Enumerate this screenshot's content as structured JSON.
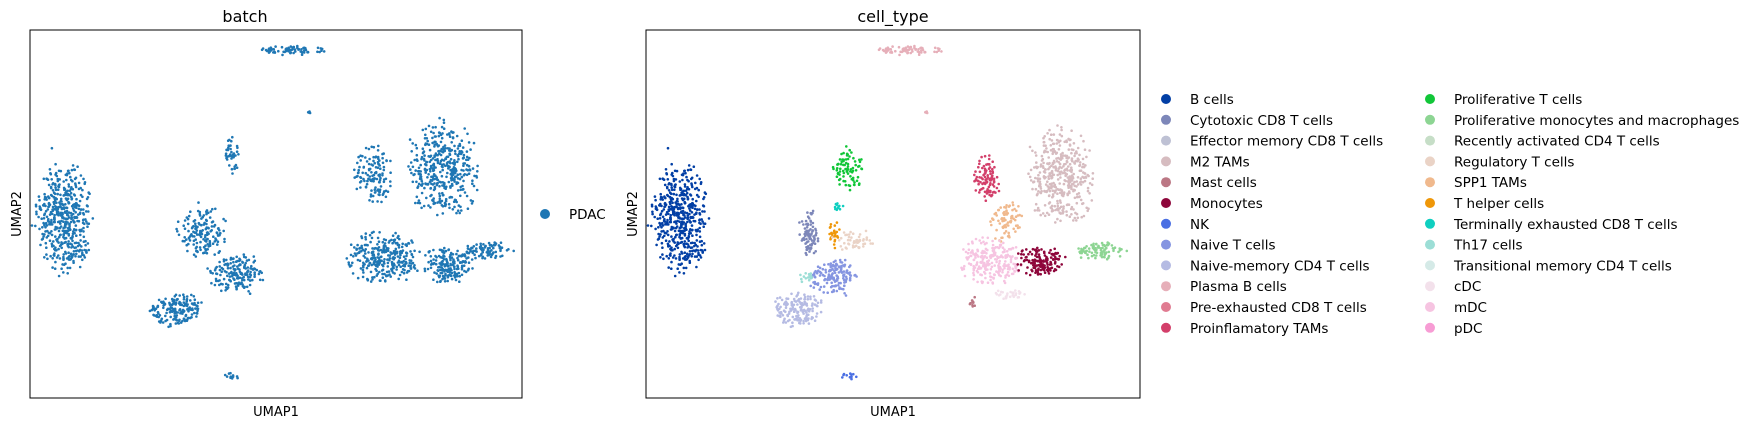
{
  "figure": {
    "panels": [
      {
        "title": "batch",
        "xlabel": "UMAP1",
        "ylabel": "UMAP2"
      },
      {
        "title": "cell_type",
        "xlabel": "UMAP1",
        "ylabel": "UMAP2"
      }
    ]
  },
  "chart_data": [
    {
      "type": "scatter",
      "title": "batch",
      "xlabel": "UMAP1",
      "ylabel": "UMAP2",
      "grid": false,
      "ticks": "none",
      "legend": {
        "placement": "right",
        "entries": [
          {
            "name": "PDAC",
            "color": "#1f77b4"
          }
        ]
      },
      "clusters": [
        {
          "name": "PDAC",
          "cx": 0.07,
          "cy": 0.51,
          "rx": 0.055,
          "ry": 0.15,
          "n": 500
        },
        {
          "name": "PDAC",
          "cx": 0.53,
          "cy": 0.055,
          "rx": 0.065,
          "ry": 0.012,
          "n": 70
        },
        {
          "name": "PDAC",
          "cx": 0.565,
          "cy": 0.225,
          "rx": 0.006,
          "ry": 0.006,
          "n": 6
        },
        {
          "name": "PDAC",
          "cx": 0.41,
          "cy": 0.34,
          "rx": 0.015,
          "ry": 0.05,
          "n": 40
        },
        {
          "name": "PDAC",
          "cx": 0.35,
          "cy": 0.55,
          "rx": 0.05,
          "ry": 0.07,
          "n": 150
        },
        {
          "name": "PDAC",
          "cx": 0.42,
          "cy": 0.66,
          "rx": 0.055,
          "ry": 0.055,
          "n": 170
        },
        {
          "name": "PDAC",
          "cx": 0.3,
          "cy": 0.76,
          "rx": 0.06,
          "ry": 0.045,
          "n": 170
        },
        {
          "name": "PDAC",
          "cx": 0.7,
          "cy": 0.4,
          "rx": 0.04,
          "ry": 0.08,
          "n": 130
        },
        {
          "name": "PDAC",
          "cx": 0.84,
          "cy": 0.38,
          "rx": 0.07,
          "ry": 0.13,
          "n": 420
        },
        {
          "name": "PDAC",
          "cx": 0.72,
          "cy": 0.62,
          "rx": 0.07,
          "ry": 0.07,
          "n": 300
        },
        {
          "name": "PDAC",
          "cx": 0.85,
          "cy": 0.64,
          "rx": 0.05,
          "ry": 0.05,
          "n": 180
        },
        {
          "name": "PDAC",
          "cx": 0.93,
          "cy": 0.6,
          "rx": 0.05,
          "ry": 0.025,
          "n": 90
        },
        {
          "name": "PDAC",
          "cx": 0.41,
          "cy": 0.94,
          "rx": 0.015,
          "ry": 0.01,
          "n": 12
        }
      ]
    },
    {
      "type": "scatter",
      "title": "cell_type",
      "xlabel": "UMAP1",
      "ylabel": "UMAP2",
      "grid": false,
      "ticks": "none",
      "legend": {
        "placement": "right",
        "columns": 2,
        "entries": [
          {
            "name": "B cells",
            "color": "#023fa5"
          },
          {
            "name": "Cytotoxic CD8 T cells",
            "color": "#7d87b9"
          },
          {
            "name": "Effector memory CD8 T cells",
            "color": "#bec1d4"
          },
          {
            "name": "M2 TAMs",
            "color": "#d6bcc0"
          },
          {
            "name": "Mast cells",
            "color": "#bb7784"
          },
          {
            "name": "Monocytes",
            "color": "#8e063b"
          },
          {
            "name": "NK",
            "color": "#4a6fe3"
          },
          {
            "name": "Naive T cells",
            "color": "#8595e1"
          },
          {
            "name": "Naive-memory CD4 T cells",
            "color": "#b5bbe3"
          },
          {
            "name": "Plasma B cells",
            "color": "#e6afb9"
          },
          {
            "name": "Pre-exhausted CD8 T cells",
            "color": "#e07b91"
          },
          {
            "name": "Proinflamatory TAMs",
            "color": "#d33f6a"
          },
          {
            "name": "Proliferative T cells",
            "color": "#11c638"
          },
          {
            "name": "Proliferative monocytes and macrophages",
            "color": "#8dd593"
          },
          {
            "name": "Recently activated CD4 T cells",
            "color": "#c6dec7"
          },
          {
            "name": "Regulatory T cells",
            "color": "#ead3c6"
          },
          {
            "name": "SPP1 TAMs",
            "color": "#f0b98d"
          },
          {
            "name": "T helper cells",
            "color": "#ef9708"
          },
          {
            "name": "Terminally exhausted CD8 T cells",
            "color": "#0fcfc0"
          },
          {
            "name": "Th17 cells",
            "color": "#9cded6"
          },
          {
            "name": "Transitional memory CD4 T cells",
            "color": "#d5eae7"
          },
          {
            "name": "cDC",
            "color": "#f3e1eb"
          },
          {
            "name": "mDC",
            "color": "#f6c4e1"
          },
          {
            "name": "pDC",
            "color": "#f79cd4"
          }
        ]
      },
      "clusters": [
        {
          "name": "B cells",
          "cx": 0.07,
          "cy": 0.51,
          "rx": 0.055,
          "ry": 0.15,
          "n": 500
        },
        {
          "name": "Plasma B cells",
          "cx": 0.53,
          "cy": 0.055,
          "rx": 0.065,
          "ry": 0.012,
          "n": 70
        },
        {
          "name": "Plasma B cells",
          "cx": 0.565,
          "cy": 0.225,
          "rx": 0.006,
          "ry": 0.006,
          "n": 6
        },
        {
          "name": "Proliferative T cells",
          "cx": 0.41,
          "cy": 0.38,
          "rx": 0.03,
          "ry": 0.055,
          "n": 80
        },
        {
          "name": "Cytotoxic CD8 T cells",
          "cx": 0.33,
          "cy": 0.55,
          "rx": 0.02,
          "ry": 0.065,
          "n": 80
        },
        {
          "name": "T helper cells",
          "cx": 0.38,
          "cy": 0.56,
          "rx": 0.012,
          "ry": 0.04,
          "n": 30
        },
        {
          "name": "Terminally exhausted CD8 T cells",
          "cx": 0.39,
          "cy": 0.48,
          "rx": 0.012,
          "ry": 0.012,
          "n": 12
        },
        {
          "name": "Regulatory T cells",
          "cx": 0.42,
          "cy": 0.57,
          "rx": 0.04,
          "ry": 0.03,
          "n": 50
        },
        {
          "name": "Naive T cells",
          "cx": 0.38,
          "cy": 0.67,
          "rx": 0.05,
          "ry": 0.05,
          "n": 160
        },
        {
          "name": "Th17 cells",
          "cx": 0.325,
          "cy": 0.67,
          "rx": 0.015,
          "ry": 0.02,
          "n": 16
        },
        {
          "name": "Naive-memory CD4 T cells",
          "cx": 0.31,
          "cy": 0.76,
          "rx": 0.055,
          "ry": 0.045,
          "n": 160
        },
        {
          "name": "Proinflamatory TAMs",
          "cx": 0.69,
          "cy": 0.41,
          "rx": 0.025,
          "ry": 0.065,
          "n": 100
        },
        {
          "name": "M2 TAMs",
          "cx": 0.84,
          "cy": 0.4,
          "rx": 0.065,
          "ry": 0.13,
          "n": 420
        },
        {
          "name": "SPP1 TAMs",
          "cx": 0.73,
          "cy": 0.52,
          "rx": 0.03,
          "ry": 0.06,
          "n": 80
        },
        {
          "name": "mDC",
          "cx": 0.7,
          "cy": 0.63,
          "rx": 0.06,
          "ry": 0.065,
          "n": 240
        },
        {
          "name": "Monocytes",
          "cx": 0.8,
          "cy": 0.63,
          "rx": 0.05,
          "ry": 0.04,
          "n": 150
        },
        {
          "name": "Proliferative monocytes and macrophages",
          "cx": 0.92,
          "cy": 0.6,
          "rx": 0.05,
          "ry": 0.025,
          "n": 90
        },
        {
          "name": "Mast cells",
          "cx": 0.66,
          "cy": 0.74,
          "rx": 0.01,
          "ry": 0.015,
          "n": 12
        },
        {
          "name": "cDC",
          "cx": 0.74,
          "cy": 0.72,
          "rx": 0.035,
          "ry": 0.015,
          "n": 30
        },
        {
          "name": "NK",
          "cx": 0.41,
          "cy": 0.94,
          "rx": 0.015,
          "ry": 0.01,
          "n": 12
        }
      ]
    }
  ]
}
